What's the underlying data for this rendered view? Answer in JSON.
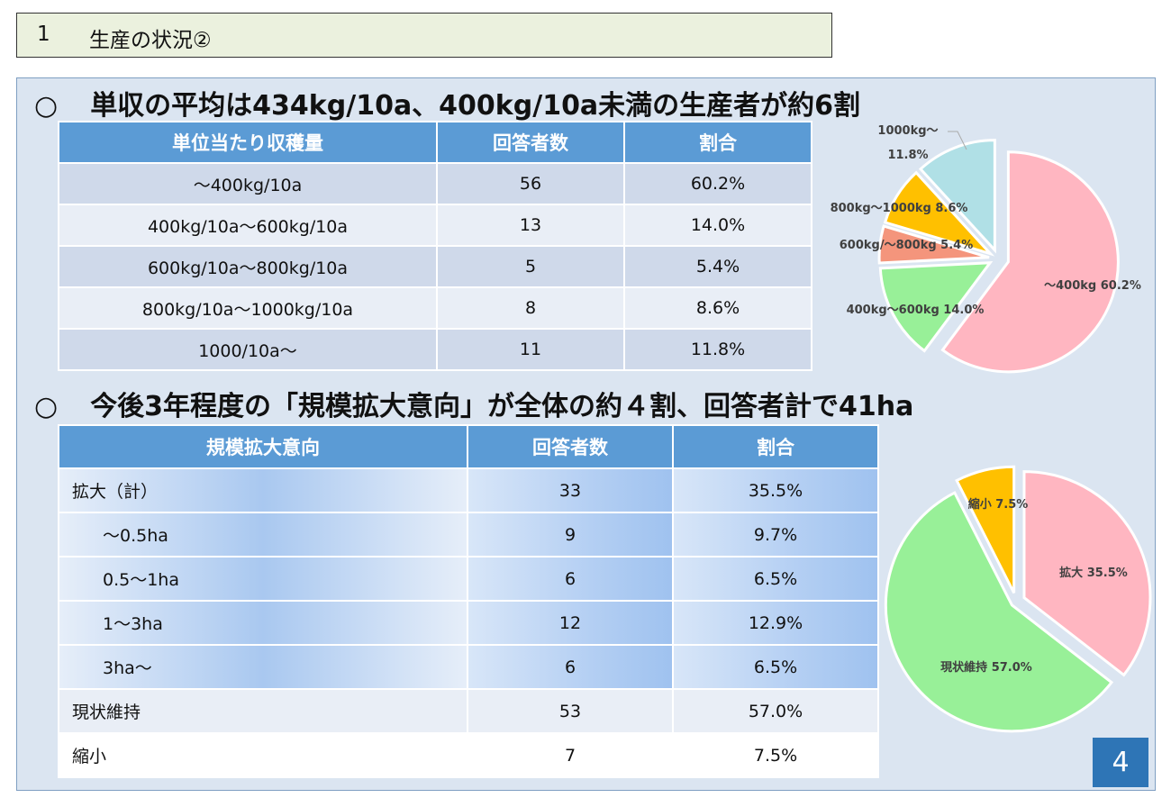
{
  "title": {
    "number": "1",
    "text": "生産の状況②"
  },
  "section1": {
    "circle": "○",
    "heading": "単収の平均は434kg/10a、400kg/10a未満の生産者が約6割",
    "table": {
      "headers": [
        "単位当たり収穫量",
        "回答者数",
        "割合"
      ],
      "rows": [
        [
          "～400kg/10a",
          "56",
          "60.2%"
        ],
        [
          "400kg/10a～600kg/10a",
          "13",
          "14.0%"
        ],
        [
          "600kg/10a～800kg/10a",
          "5",
          "5.4%"
        ],
        [
          "800kg/10a～1000kg/10a",
          "8",
          "8.6%"
        ],
        [
          "1000/10a～",
          "11",
          "11.8%"
        ]
      ]
    }
  },
  "section2": {
    "circle": "○",
    "heading": "今後3年程度の「規模拡大意向」が全体の約４割、回答者計で41ha",
    "table": {
      "headers": [
        "規模拡大意向",
        "回答者数",
        "割合"
      ],
      "rows": [
        [
          "拡大（計）",
          "33",
          "35.5%"
        ],
        [
          "～0.5ha",
          "9",
          "9.7%"
        ],
        [
          "0.5～1ha",
          "6",
          "6.5%"
        ],
        [
          "1～3ha",
          "12",
          "12.9%"
        ],
        [
          "3ha～",
          "6",
          "6.5%"
        ],
        [
          "現状維持",
          "53",
          "57.0%"
        ],
        [
          "縮小",
          "7",
          "7.5%"
        ]
      ]
    }
  },
  "chart_data": [
    {
      "type": "pie",
      "title": "",
      "labels": [
        "～400kg 60.2%",
        "400kg～600kg 14.0%",
        "600kg/～800kg 5.4%",
        "800kg～1000kg 8.6%",
        "1000kg～ 11.8%"
      ],
      "values": [
        60.2,
        14.0,
        5.4,
        8.6,
        11.8
      ],
      "colors": [
        "#ffb6c1",
        "#98f098",
        "#f4957c",
        "#ffc000",
        "#b0e0e6"
      ]
    },
    {
      "type": "pie",
      "title": "",
      "labels": [
        "拡大 35.5%",
        "現状維持 57.0%",
        "縮小 7.5%"
      ],
      "values": [
        35.5,
        57.0,
        7.5
      ],
      "colors": [
        "#ffb6c1",
        "#98f098",
        "#ffc000"
      ]
    }
  ],
  "page_number": "4"
}
